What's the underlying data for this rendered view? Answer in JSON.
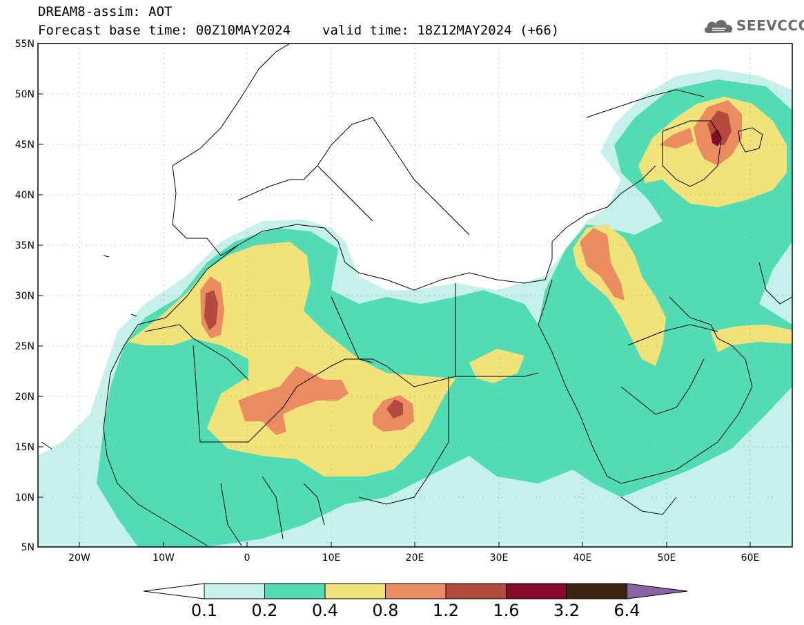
{
  "title": {
    "line1": "DREAM8-assim: AOT",
    "base": "Forecast base time: 00Z10MAY2024",
    "valid": "valid time: 18Z12MAY2024 (+66)"
  },
  "logo": {
    "text": "SEEVCCC",
    "icon": "cloud-icon"
  },
  "map": {
    "lat_ticks": [
      "55N",
      "50N",
      "45N",
      "40N",
      "35N",
      "30N",
      "25N",
      "20N",
      "15N",
      "10N",
      "5N"
    ],
    "lon_ticks": [
      "20W",
      "10W",
      "0",
      "10E",
      "20E",
      "30E",
      "40E",
      "50E",
      "60E"
    ],
    "extent": {
      "lon_min": -25,
      "lon_max": 65,
      "lat_min": 5,
      "lat_max": 55
    },
    "ocean_color": "#ffffff",
    "border_color": "#000000"
  },
  "colorbar": {
    "labels": [
      "0.1",
      "0.2",
      "0.4",
      "0.8",
      "1.2",
      "1.6",
      "3.2",
      "6.4"
    ],
    "colors": [
      "#ffffff",
      "#c6f0ea",
      "#52dcb4",
      "#f2e27a",
      "#ea8c60",
      "#b44a3e",
      "#830c2a",
      "#3b2512",
      "#8a63a6"
    ]
  }
}
